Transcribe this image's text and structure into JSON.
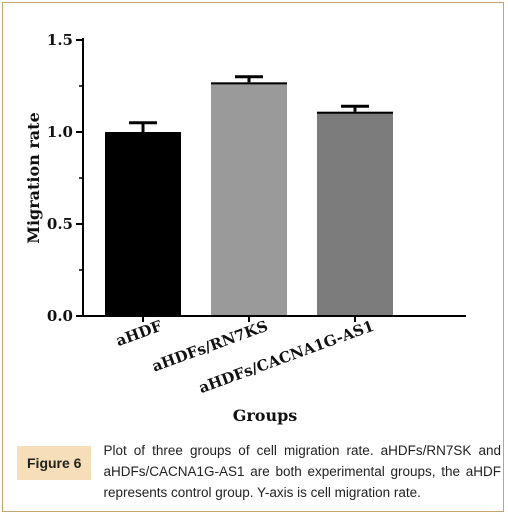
{
  "chart_data": {
    "type": "bar",
    "categories": [
      "aHDF",
      "aHDFs/RN7KS",
      "aHDFs/CACNA1G-AS1"
    ],
    "values": [
      1.0,
      1.27,
      1.11
    ],
    "errors": [
      0.05,
      0.03,
      0.03
    ],
    "xlabel": "Groups",
    "ylabel": "Migration rate",
    "ylim": [
      0,
      1.5
    ],
    "yticks": [
      "0.0",
      "0.5",
      "1.0",
      "1.5"
    ],
    "bar_colors": [
      "#000000",
      "#9a9a9a",
      "#7c7c7c"
    ]
  },
  "caption": {
    "label": "Figure 6",
    "text": "Plot of three groups of cell migration rate. aHDFs/RN7SK and aHDFs/CACNA1G-AS1 are both experimental groups, the aHDF represents control group. Y-axis is cell migration rate."
  }
}
